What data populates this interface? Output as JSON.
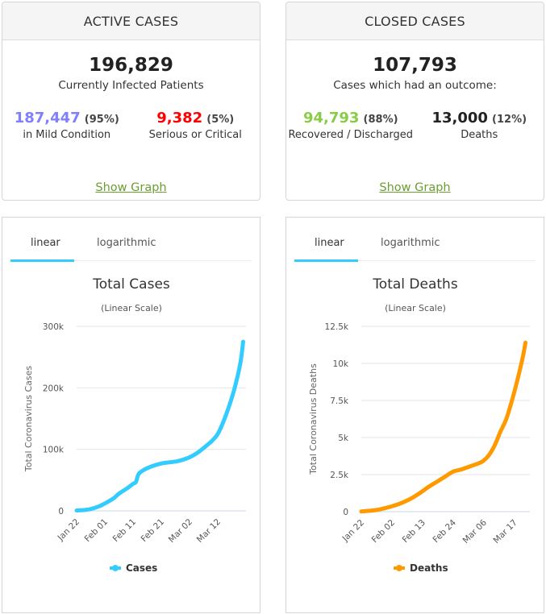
{
  "active": {
    "header": "ACTIVE CASES",
    "total": "196,829",
    "total_label": "Currently Infected Patients",
    "left": {
      "value": "187,447",
      "pct": "(95%)",
      "label": "in Mild Condition",
      "color": "#8080ff"
    },
    "right": {
      "value": "9,382",
      "pct": "(5%)",
      "label": "Serious or Critical",
      "color": "#ff0000"
    },
    "link": "Show Graph"
  },
  "closed": {
    "header": "CLOSED CASES",
    "total": "107,793",
    "total_label": "Cases which had an outcome:",
    "left": {
      "value": "94,793",
      "pct": "(88%)",
      "label": "Recovered / Discharged",
      "color": "#8acc48"
    },
    "right": {
      "value": "13,000",
      "pct": "(12%)",
      "label": "Deaths",
      "color": "#222222"
    },
    "link": "Show Graph"
  },
  "tabs": {
    "linear": "linear",
    "log": "logarithmic"
  },
  "chart_data": [
    {
      "type": "line",
      "title": "Total Cases",
      "subtitle": "(Linear Scale)",
      "ylabel": "Total Coronavirus Cases",
      "xlabel": "",
      "ylim": [
        0,
        300000
      ],
      "yticks": [
        0,
        100000,
        200000,
        300000
      ],
      "ytick_labels": [
        "0",
        "100k",
        "200k",
        "300k"
      ],
      "xtick_labels": [
        "Jan 22",
        "Feb 01",
        "Feb 11",
        "Feb 21",
        "Mar 02",
        "Mar 12"
      ],
      "xtick_days": [
        0,
        10,
        20,
        30,
        40,
        50
      ],
      "grid": true,
      "legend": "bottom",
      "color": "#33ccff",
      "series": [
        {
          "name": "Cases",
          "x_days": [
            0,
            3,
            5,
            8,
            10,
            13,
            15,
            18,
            20,
            21,
            22,
            24,
            27,
            30,
            33,
            36,
            40,
            43,
            46,
            48,
            50,
            52,
            54,
            56,
            58,
            59
          ],
          "values": [
            600,
            1500,
            3000,
            7500,
            12000,
            20000,
            28000,
            37000,
            44000,
            47000,
            60000,
            67000,
            73000,
            77000,
            79000,
            81000,
            87000,
            95000,
            106000,
            114000,
            125000,
            145000,
            170000,
            200000,
            240000,
            275000
          ]
        }
      ]
    },
    {
      "type": "line",
      "title": "Total Deaths",
      "subtitle": "(Linear Scale)",
      "ylabel": "Total Coronavirus Deaths",
      "xlabel": "",
      "ylim": [
        0,
        12500
      ],
      "yticks": [
        0,
        2500,
        5000,
        7500,
        10000,
        12500
      ],
      "ytick_labels": [
        "0",
        "2.5k",
        "5k",
        "7.5k",
        "10k",
        "12.5k"
      ],
      "xtick_labels": [
        "Jan 22",
        "Feb 02",
        "Feb 13",
        "Feb 24",
        "Mar 06",
        "Mar 17"
      ],
      "xtick_days": [
        0,
        11,
        22,
        33,
        44,
        55
      ],
      "grid": true,
      "legend": "bottom",
      "color": "#ff9900",
      "series": [
        {
          "name": "Deaths",
          "x_days": [
            0,
            3,
            6,
            9,
            12,
            15,
            18,
            21,
            24,
            27,
            30,
            33,
            36,
            39,
            42,
            44,
            46,
            48,
            50,
            52,
            54,
            56,
            58,
            59
          ],
          "values": [
            17,
            60,
            130,
            260,
            420,
            630,
            900,
            1250,
            1650,
            2000,
            2350,
            2700,
            2850,
            3050,
            3250,
            3450,
            3850,
            4500,
            5400,
            6200,
            7400,
            8800,
            10400,
            11400
          ]
        }
      ]
    }
  ]
}
